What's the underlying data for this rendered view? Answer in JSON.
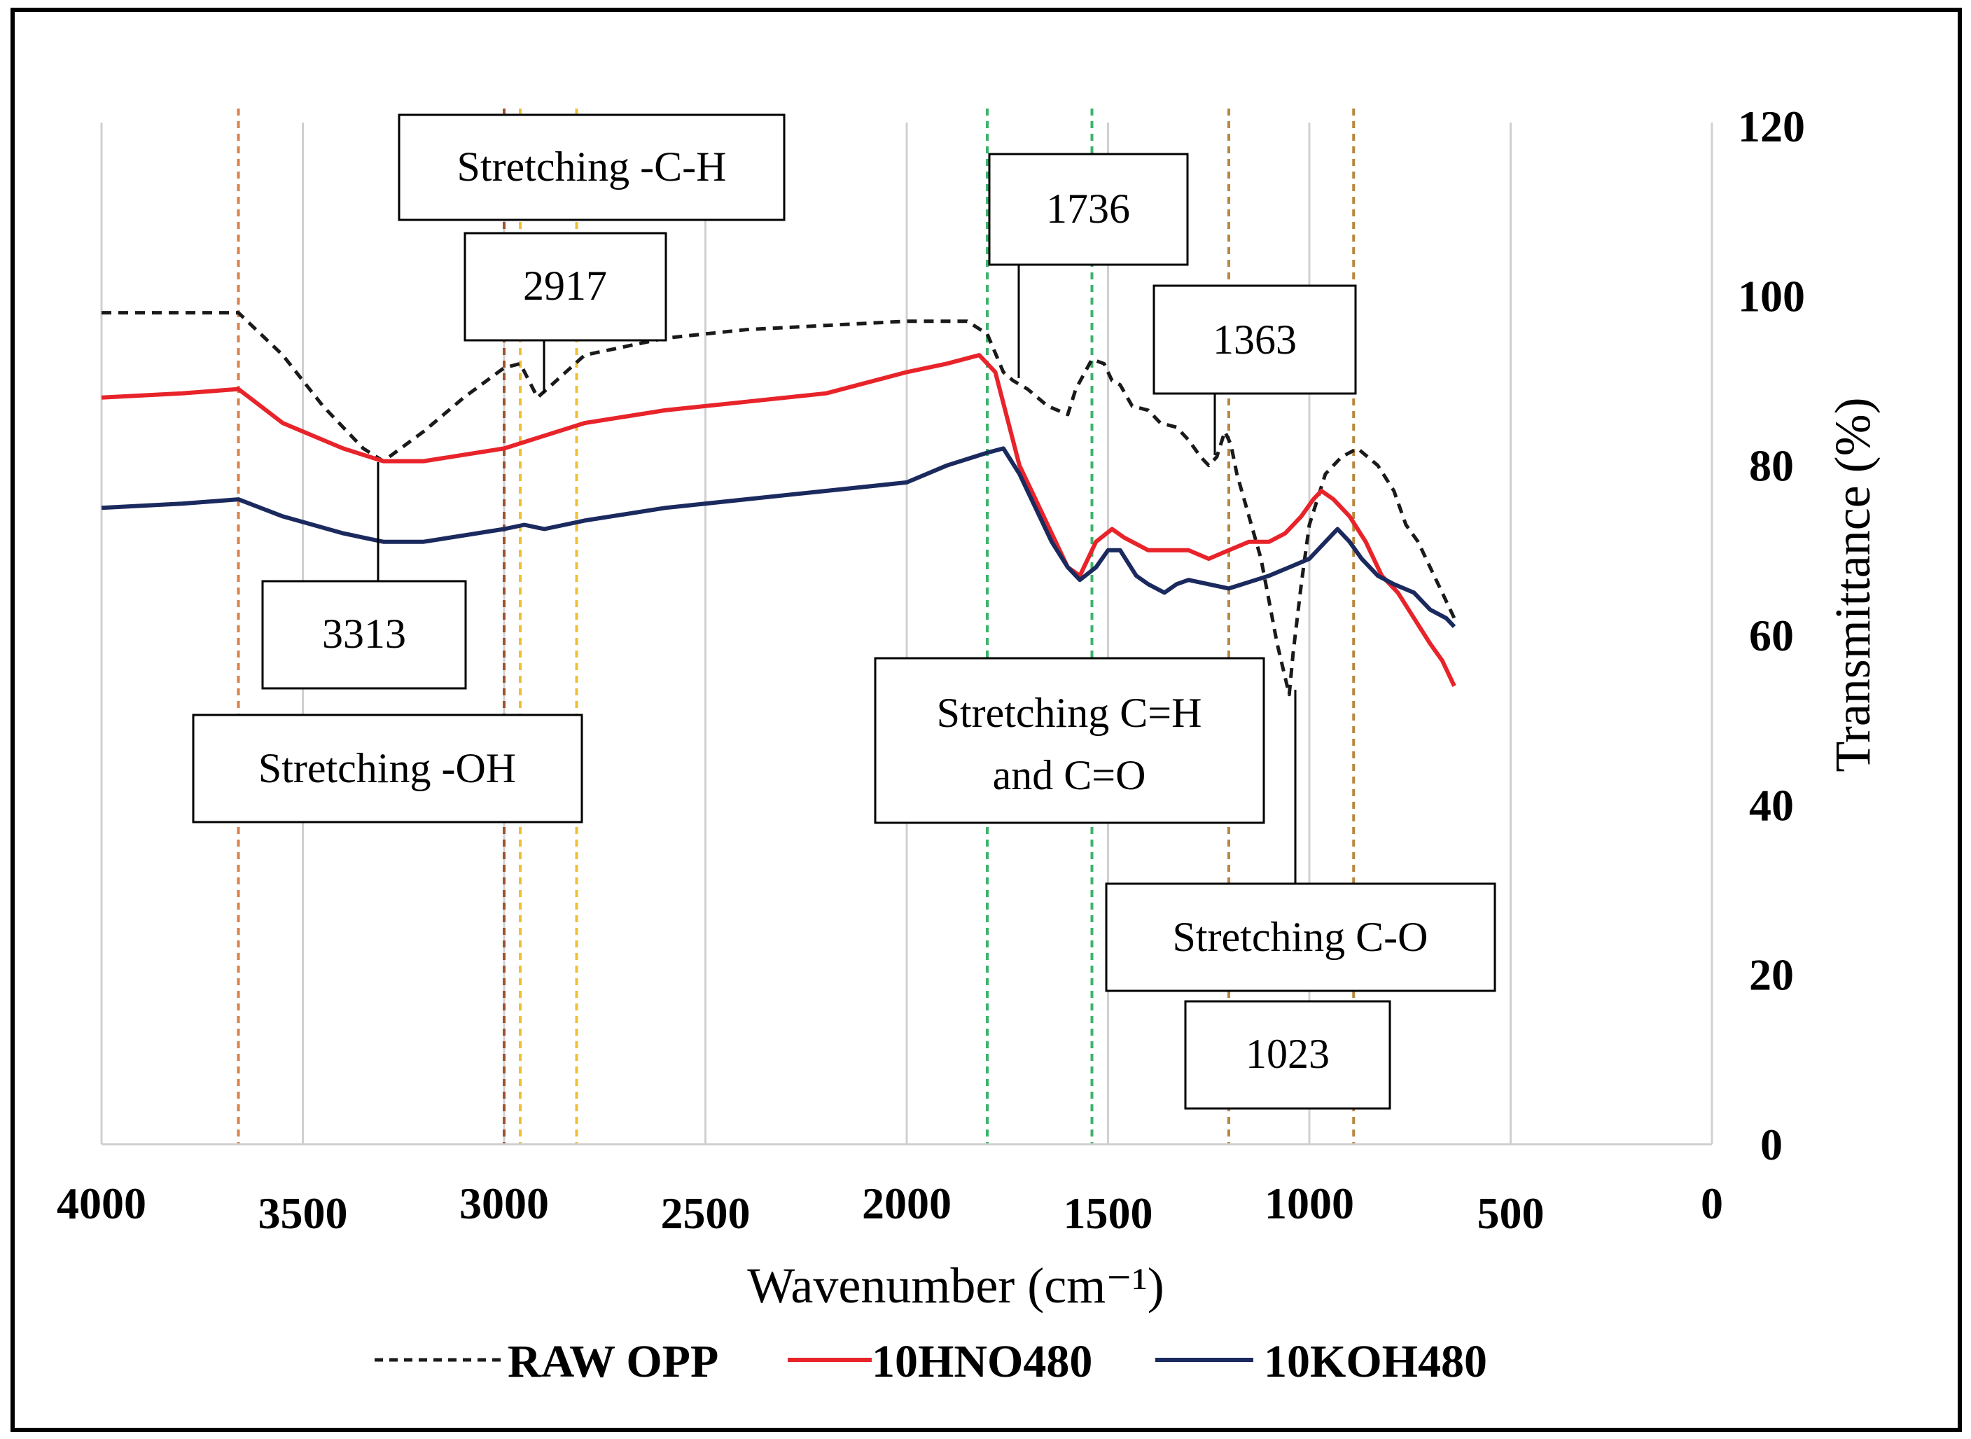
{
  "chart_data": {
    "type": "line",
    "title": "",
    "xlabel": "Wavenumber (cm⁻¹)",
    "ylabel": "Transmittance (%)",
    "xlim": [
      4000,
      0
    ],
    "ylim": [
      0,
      120
    ],
    "x_ticks": [
      "4000",
      "3500",
      "3000",
      "2500",
      "2000",
      "1500",
      "1000",
      "500",
      "0"
    ],
    "y_ticks": [
      "0",
      "20",
      "40",
      "60",
      "80",
      "100",
      "120"
    ],
    "gridlines": [
      4000,
      3500,
      3000,
      2500,
      2000,
      1500,
      1000,
      500,
      0
    ],
    "legend_position": "bottom",
    "colors": {
      "raw": "#1a1a1a",
      "hno": "#e8232a",
      "koh": "#1b2a5e",
      "grid": "#d0d0d0",
      "orange_marker": "#d9824a",
      "brown_marker": "#b8873f",
      "yellow_marker": "#f0c030",
      "green_marker": "#3cb36a",
      "darkred_marker": "#a0522d"
    },
    "series": [
      {
        "name": "RAW OPP",
        "key": "raw",
        "dashed": true,
        "points": [
          [
            4000,
            98
          ],
          [
            3800,
            98
          ],
          [
            3660,
            98
          ],
          [
            3550,
            93
          ],
          [
            3450,
            87
          ],
          [
            3350,
            82
          ],
          [
            3300,
            80.5
          ],
          [
            3200,
            84
          ],
          [
            3100,
            88
          ],
          [
            3000,
            91.5
          ],
          [
            2960,
            92
          ],
          [
            2917,
            88
          ],
          [
            2870,
            90
          ],
          [
            2800,
            93
          ],
          [
            2700,
            94
          ],
          [
            2600,
            95
          ],
          [
            2400,
            96
          ],
          [
            2200,
            96.5
          ],
          [
            2000,
            97
          ],
          [
            1850,
            97
          ],
          [
            1800,
            95.5
          ],
          [
            1760,
            91
          ],
          [
            1736,
            90
          ],
          [
            1700,
            89
          ],
          [
            1650,
            87
          ],
          [
            1600,
            86
          ],
          [
            1580,
            89
          ],
          [
            1540,
            92.5
          ],
          [
            1510,
            92
          ],
          [
            1490,
            90
          ],
          [
            1470,
            89.5
          ],
          [
            1440,
            87
          ],
          [
            1400,
            86.5
          ],
          [
            1370,
            85
          ],
          [
            1330,
            84.5
          ],
          [
            1300,
            83
          ],
          [
            1270,
            81
          ],
          [
            1250,
            80
          ],
          [
            1230,
            81
          ],
          [
            1210,
            84
          ],
          [
            1195,
            82.5
          ],
          [
            1180,
            79
          ],
          [
            1150,
            74
          ],
          [
            1120,
            69
          ],
          [
            1100,
            64
          ],
          [
            1080,
            59
          ],
          [
            1060,
            55
          ],
          [
            1050,
            53
          ],
          [
            1040,
            58
          ],
          [
            1020,
            66
          ],
          [
            1000,
            73
          ],
          [
            960,
            79
          ],
          [
            920,
            81
          ],
          [
            880,
            82
          ],
          [
            830,
            80
          ],
          [
            790,
            77
          ],
          [
            760,
            73
          ],
          [
            730,
            71
          ],
          [
            700,
            68
          ],
          [
            670,
            65
          ],
          [
            640,
            62
          ]
        ]
      },
      {
        "name": "10HNO480",
        "key": "hno",
        "dashed": false,
        "points": [
          [
            4000,
            88
          ],
          [
            3800,
            88.5
          ],
          [
            3660,
            89
          ],
          [
            3550,
            85
          ],
          [
            3400,
            82
          ],
          [
            3300,
            80.5
          ],
          [
            3200,
            80.5
          ],
          [
            3000,
            82
          ],
          [
            2800,
            85
          ],
          [
            2600,
            86.5
          ],
          [
            2400,
            87.5
          ],
          [
            2200,
            88.5
          ],
          [
            2000,
            91
          ],
          [
            1900,
            92
          ],
          [
            1820,
            93
          ],
          [
            1780,
            91
          ],
          [
            1720,
            80
          ],
          [
            1680,
            76
          ],
          [
            1640,
            72
          ],
          [
            1600,
            68
          ],
          [
            1570,
            67
          ],
          [
            1530,
            71
          ],
          [
            1490,
            72.5
          ],
          [
            1460,
            71.5
          ],
          [
            1400,
            70
          ],
          [
            1300,
            70
          ],
          [
            1250,
            69
          ],
          [
            1200,
            70
          ],
          [
            1150,
            71
          ],
          [
            1100,
            71
          ],
          [
            1060,
            72
          ],
          [
            1020,
            74
          ],
          [
            990,
            76
          ],
          [
            970,
            77
          ],
          [
            940,
            76
          ],
          [
            900,
            74
          ],
          [
            860,
            71
          ],
          [
            820,
            67
          ],
          [
            780,
            65
          ],
          [
            740,
            62
          ],
          [
            700,
            59
          ],
          [
            670,
            57
          ],
          [
            640,
            54
          ]
        ]
      },
      {
        "name": "10KOH480",
        "key": "koh",
        "dashed": false,
        "points": [
          [
            4000,
            75
          ],
          [
            3800,
            75.5
          ],
          [
            3660,
            76
          ],
          [
            3550,
            74
          ],
          [
            3400,
            72
          ],
          [
            3300,
            71
          ],
          [
            3200,
            71
          ],
          [
            3000,
            72.5
          ],
          [
            2950,
            73
          ],
          [
            2900,
            72.5
          ],
          [
            2800,
            73.5
          ],
          [
            2600,
            75
          ],
          [
            2400,
            76
          ],
          [
            2200,
            77
          ],
          [
            2000,
            78
          ],
          [
            1900,
            80
          ],
          [
            1800,
            81.5
          ],
          [
            1760,
            82
          ],
          [
            1720,
            79
          ],
          [
            1680,
            75
          ],
          [
            1640,
            71
          ],
          [
            1600,
            68
          ],
          [
            1570,
            66.5
          ],
          [
            1530,
            68
          ],
          [
            1500,
            70
          ],
          [
            1470,
            70
          ],
          [
            1430,
            67
          ],
          [
            1400,
            66
          ],
          [
            1360,
            65
          ],
          [
            1330,
            66
          ],
          [
            1300,
            66.5
          ],
          [
            1200,
            65.5
          ],
          [
            1100,
            67
          ],
          [
            1050,
            68
          ],
          [
            1000,
            69
          ],
          [
            960,
            71
          ],
          [
            930,
            72.5
          ],
          [
            900,
            71
          ],
          [
            870,
            69
          ],
          [
            830,
            67
          ],
          [
            790,
            66
          ],
          [
            740,
            65
          ],
          [
            700,
            63
          ],
          [
            660,
            62
          ],
          [
            640,
            61
          ]
        ]
      }
    ],
    "annotations": [
      {
        "label": "Stretching -C-H",
        "wn_anchor": 2917
      },
      {
        "label": "2917",
        "wn_anchor": 2917
      },
      {
        "label": "1736",
        "wn_anchor": 1736
      },
      {
        "label": "1363",
        "wn_anchor": 1363
      },
      {
        "label": "3313",
        "wn_anchor": 3313
      },
      {
        "label": "Stretching -OH",
        "wn_anchor": 3313
      },
      {
        "label": "Stretching C=H",
        "wn_anchor": 1600
      },
      {
        "label": "and C=O",
        "wn_anchor": 1600
      },
      {
        "label": "Stretching C-O",
        "wn_anchor": 1023
      },
      {
        "label": "1023",
        "wn_anchor": 1023
      }
    ],
    "marker_lines": [
      {
        "wn": 3660,
        "color": "orange_marker"
      },
      {
        "wn": 3000,
        "color": "darkred_marker"
      },
      {
        "wn": 2960,
        "color": "yellow_marker"
      },
      {
        "wn": 2820,
        "color": "yellow_marker"
      },
      {
        "wn": 1800,
        "color": "green_marker"
      },
      {
        "wn": 1540,
        "color": "green_marker"
      },
      {
        "wn": 1200,
        "color": "brown_marker"
      },
      {
        "wn": 890,
        "color": "brown_marker"
      }
    ]
  }
}
